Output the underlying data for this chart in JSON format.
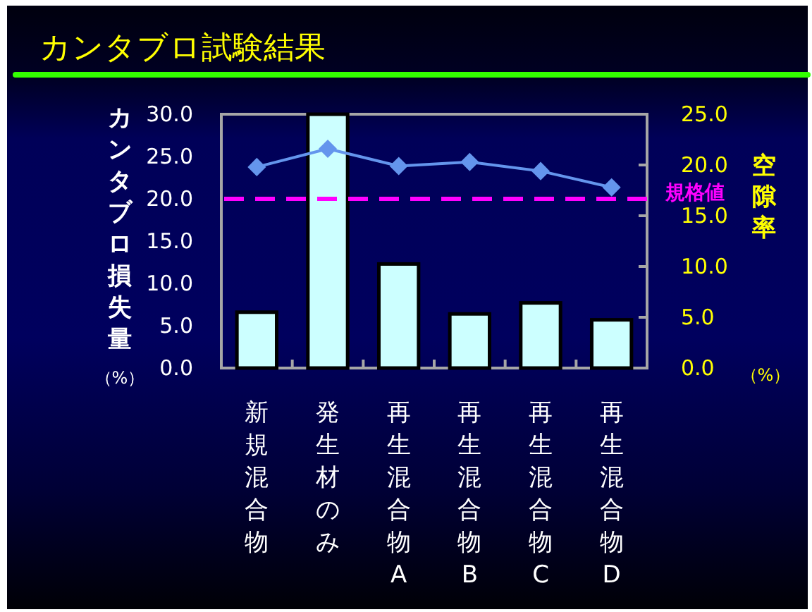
{
  "chart_data": {
    "type": "bar",
    "title": "カンタブロ試験結果",
    "ylabel": "カンタブロ損失量",
    "y2label": "空隙率",
    "categories": [
      "新規混合物",
      "発生材のみ",
      "再生混合物A",
      "再生混合物B",
      "再生混合物C",
      "再生混合物D"
    ],
    "series": [
      {
        "color": "#ccffff",
        "values": [
          6.6,
          30.0,
          12.3,
          6.4,
          7.7,
          5.7
        ]
      },
      {
        "type": "line",
        "axis": "y2",
        "color": "#6495ed",
        "marker": "diamond",
        "values": [
          19.8,
          21.6,
          19.9,
          20.3,
          19.4,
          17.8
        ]
      }
    ],
    "ylim": [
      0,
      30
    ],
    "yticks": [
      {
        "value": 0,
        "label": "0.0"
      },
      {
        "value": 5,
        "label": "5.0"
      },
      {
        "value": 10,
        "label": "10.0"
      },
      {
        "value": 15,
        "label": "15.0"
      },
      {
        "value": 20,
        "label": "20.0"
      },
      {
        "value": 25,
        "label": "25.0"
      },
      {
        "value": 30,
        "label": "30.0"
      }
    ],
    "y2lim": [
      0,
      25
    ],
    "y2ticks": [
      {
        "value": 0,
        "label": "0.0"
      },
      {
        "value": 5,
        "label": "5.0"
      },
      {
        "value": 10,
        "label": "10.0"
      },
      {
        "value": 15,
        "label": "15.0"
      },
      {
        "value": 20,
        "label": "20.0"
      },
      {
        "value": 25,
        "label": "25.0"
      }
    ],
    "ref_lines": [
      {
        "axis": "y",
        "value": 20,
        "label": "規格値",
        "color": "#ff00ff",
        "line_style": "dashed"
      }
    ],
    "annotations": [
      "（%）",
      "（%）"
    ]
  }
}
